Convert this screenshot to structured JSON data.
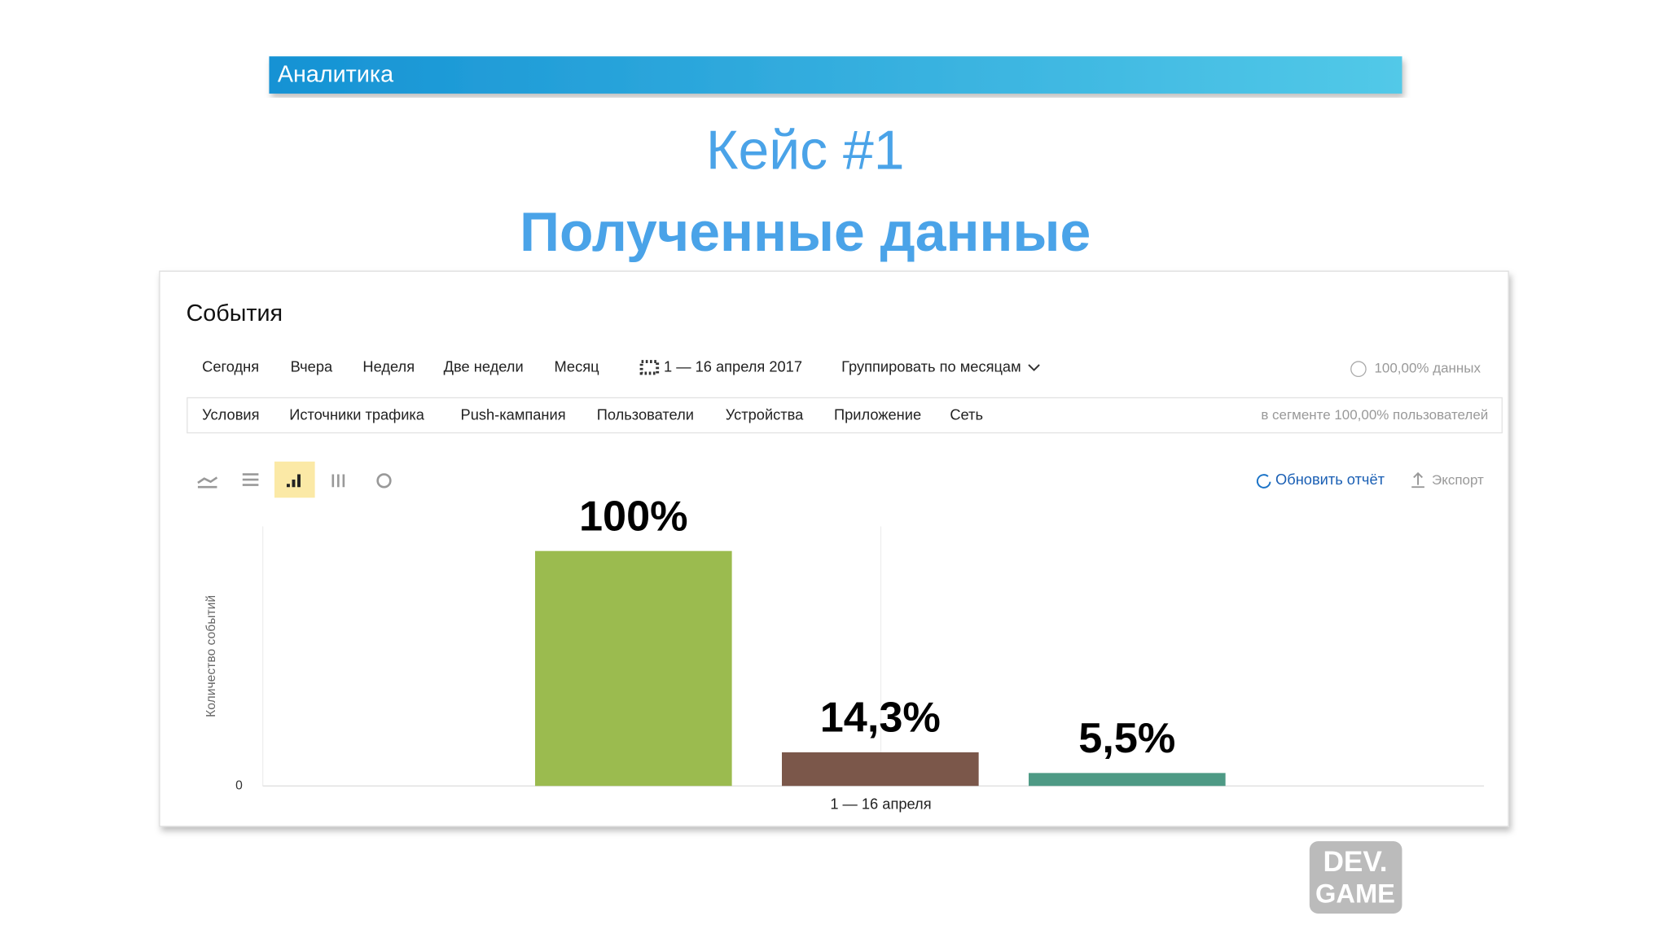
{
  "header": "Аналитика",
  "title": "Кейс #1",
  "subtitle": "Полученные данные",
  "panel": {
    "title": "События",
    "periods": [
      "Сегодня",
      "Вчера",
      "Неделя",
      "Две недели",
      "Месяц"
    ],
    "date_range": "1 — 16 апреля 2017",
    "group_by": "Группировать по месяцам",
    "data_share": "100,00% данных",
    "filters": [
      "Условия",
      "Источники трафика",
      "Push-кампания",
      "Пользователи",
      "Устройства",
      "Приложение",
      "Сеть"
    ],
    "segment": "в сегменте 100,00% пользователей",
    "refresh": "Обновить отчёт",
    "export": "Экспорт"
  },
  "chart_data": {
    "type": "bar",
    "ylabel": "Количество событий",
    "xlabel": "1 — 16 апреля",
    "values": [
      100,
      14.3,
      5.5
    ],
    "value_labels": [
      "100%",
      "14,3%",
      "5,5%"
    ],
    "colors": [
      "#9bbb4f",
      "#7b574a",
      "#4e9a85"
    ],
    "ylim": [
      0,
      110
    ],
    "yticks": [
      0
    ]
  },
  "logo": [
    "DEV.",
    "GAME"
  ]
}
